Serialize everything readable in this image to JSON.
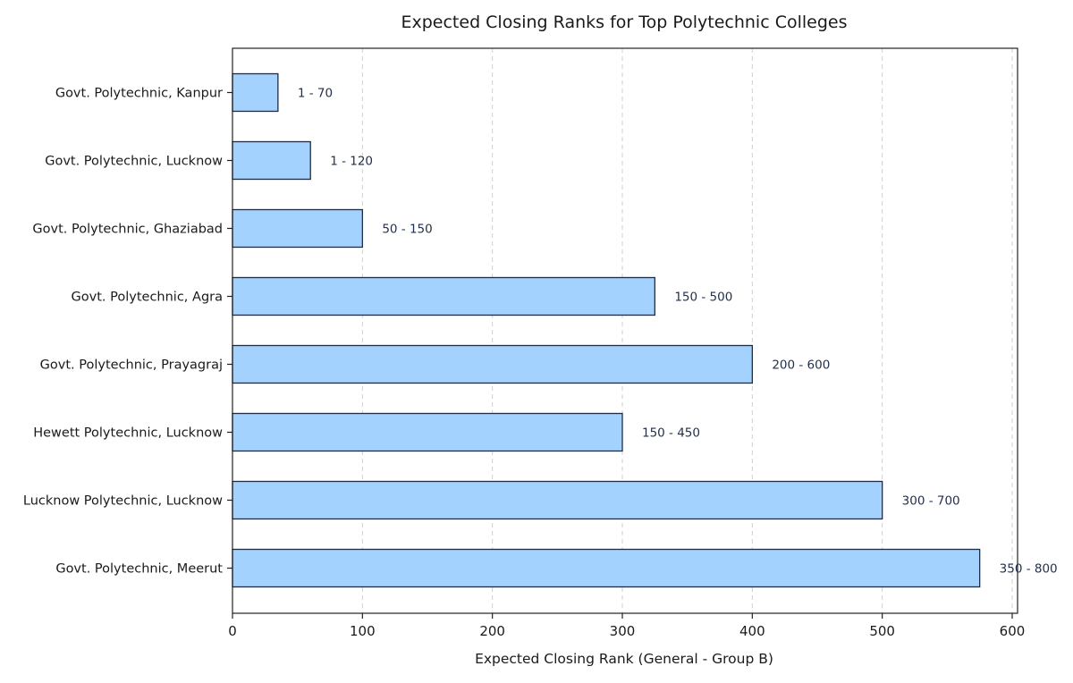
{
  "chart_data": {
    "type": "bar",
    "orientation": "horizontal",
    "title": "Expected Closing Ranks for Top Polytechnic Colleges",
    "xlabel": "Expected Closing Rank (General - Group B)",
    "ylabel": "",
    "xlim": [
      0,
      600
    ],
    "xticks": [
      0,
      100,
      200,
      300,
      400,
      500,
      600
    ],
    "grid": "vertical dashed",
    "categories": [
      "Govt. Polytechnic, Kanpur",
      "Govt. Polytechnic, Lucknow",
      "Govt. Polytechnic, Ghaziabad",
      "Govt. Polytechnic, Agra",
      "Govt. Polytechnic, Prayagraj",
      "Hewett Polytechnic, Lucknow",
      "Lucknow Polytechnic, Lucknow",
      "Govt. Polytechnic, Meerut"
    ],
    "values": [
      35,
      60,
      100,
      325,
      400,
      300,
      500,
      575
    ],
    "data_labels": [
      "1 - 70",
      "1 - 120",
      "50 - 150",
      "150 - 500",
      "200 - 600",
      "150 - 450",
      "300 - 700",
      "350 - 800"
    ],
    "colors": {
      "bar_fill": "#a3d2ff",
      "bar_edge": "#1e2d45"
    }
  }
}
